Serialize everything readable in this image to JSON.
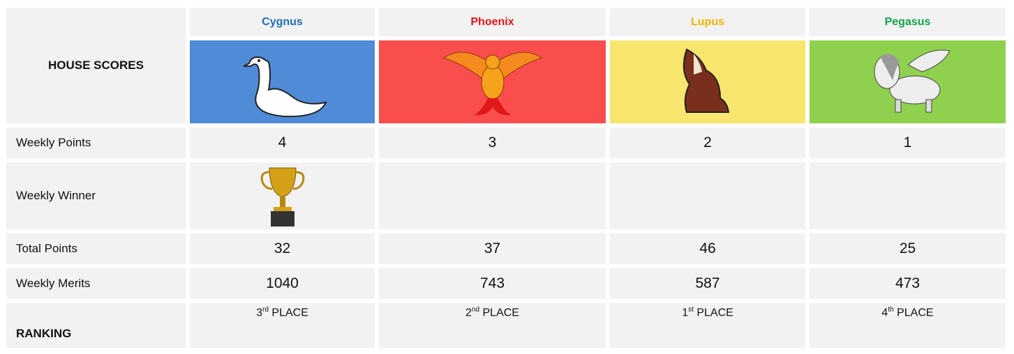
{
  "header": {
    "title": "HOUSE SCORES",
    "houses": [
      "Cygnus",
      "Phoenix",
      "Lupus",
      "Pegasus"
    ]
  },
  "rows": [
    {
      "label": "Weekly Points",
      "values": [
        4,
        3,
        2,
        1
      ]
    },
    {
      "label": "Weekly Winner"
    },
    {
      "label": "Total Points",
      "values": [
        32,
        37,
        46,
        25
      ]
    },
    {
      "label": "Weekly Merits",
      "values": [
        1040,
        743,
        587,
        473
      ]
    },
    {
      "label": "RANKING",
      "values": [
        {
          "number": "3",
          "suffix": "rd",
          "text": "PLACE"
        },
        {
          "number": "2",
          "suffix": "nd",
          "text": "PLACE"
        },
        {
          "number": "1",
          "suffix": "st",
          "text": "PLACE"
        },
        {
          "number": "4",
          "suffix": "th",
          "text": "PLACE"
        }
      ]
    }
  ]
}
